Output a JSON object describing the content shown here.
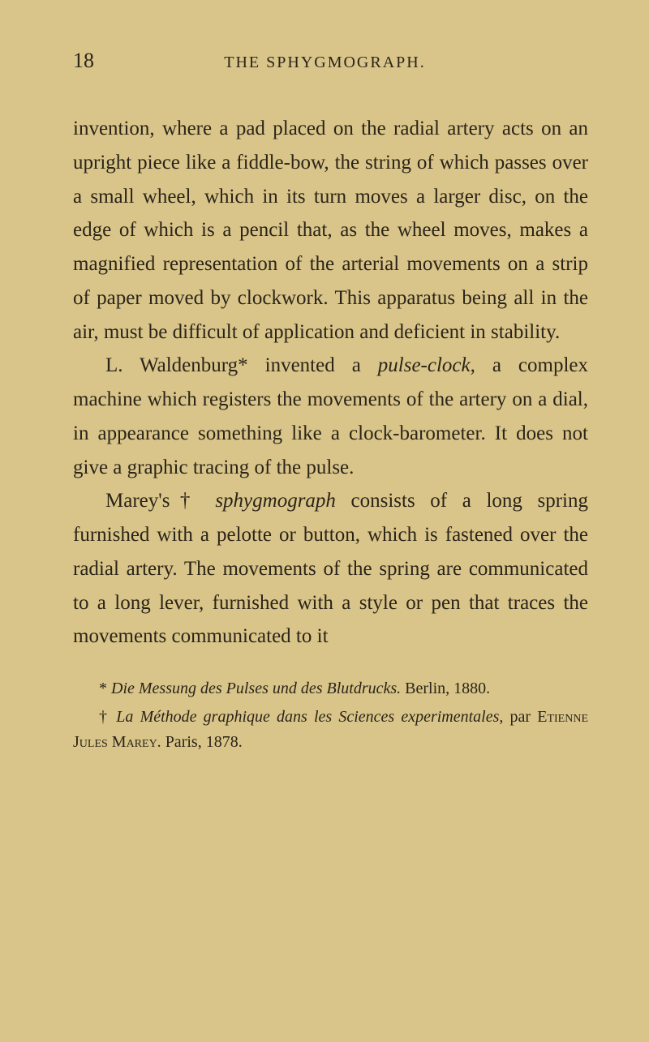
{
  "page": {
    "number": "18",
    "running_title": "THE SPHYGMOGRAPH.",
    "background_color": "#d9c58a",
    "text_color": "#2b2418",
    "body_fontsize": 25,
    "body_lineheight": 1.67,
    "header_fontsize": 26,
    "running_title_fontsize": 20,
    "footnote_fontsize": 20
  },
  "paragraphs": {
    "p1_part1": "invention, where a pad placed on the radial artery acts on an upright piece like a fiddle-bow, the string of which passes over a small wheel, which in its turn moves a larger disc, on the edge of which is a pencil that, as the wheel moves, makes a magnified representa­tion of the arterial movements on a strip of paper moved by clockwork. This apparatus being all in the air, must be difficult of appli­cation and deficient in stability.",
    "p2_prefix": "L. Waldenburg* invented a ",
    "p2_italic1": "pulse-clock,",
    "p2_suffix": " a complex machine which registers the move­ments of the artery on a dial, in appearance something like a clock-barometer. It does not give a graphic tracing of the pulse.",
    "p3_prefix": "Marey's† ",
    "p3_italic1": "sphygmograph",
    "p3_suffix": " consists of a long spring furnished with a pelotte or button, which is fastened over the radial artery. The movements of the spring are communicated to a long lever, furnished with a style or pen that traces the movements communicated to it"
  },
  "footnotes": {
    "f1_prefix": "* ",
    "f1_italic": "Die Messung des Pulses und des Blutdrucks.",
    "f1_suffix": " Berlin, 1880.",
    "f2_prefix": "† ",
    "f2_italic": "La Méthode graphique dans les Sciences experimentales,",
    "f2_mid": " par ",
    "f2_smallcaps": "Etienne Jules Marey.",
    "f2_suffix": " Paris, 1878."
  }
}
